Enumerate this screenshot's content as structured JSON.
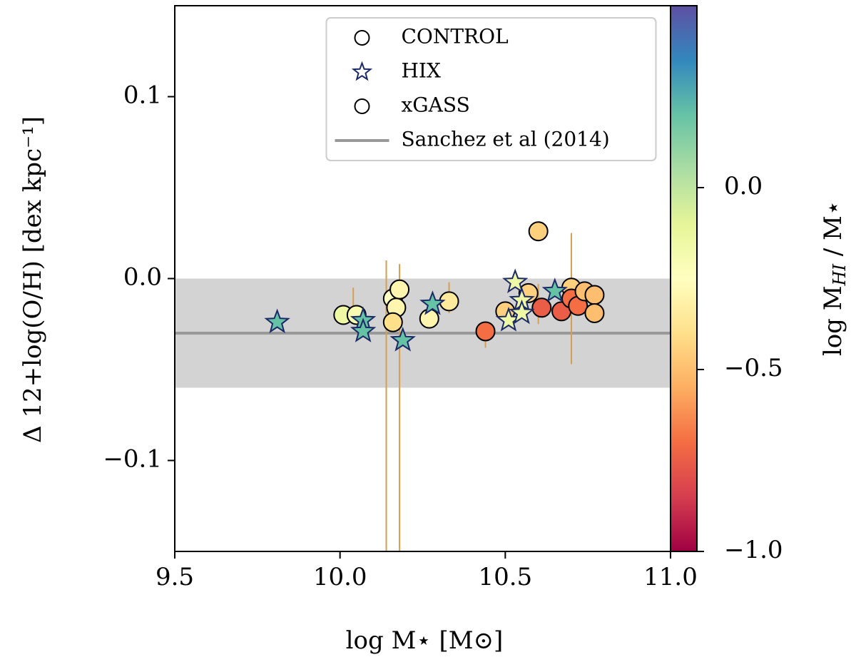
{
  "chart_data": {
    "type": "scatter",
    "xlabel": "log M⋆ [M⊙]",
    "ylabel": "Δ 12+log(O/H) [dex kpc⁻¹]",
    "xlim": [
      9.5,
      11.0
    ],
    "ylim": [
      -0.15,
      0.15
    ],
    "xticks": [
      9.5,
      {
        "value": 10,
        "label": "10.0"
      },
      10.5,
      {
        "value": 11,
        "label": "11.0"
      }
    ],
    "yticks": [
      {
        "value": -0.1,
        "label": "−0.1"
      },
      {
        "value": 0,
        "label": "0.0"
      },
      0.1
    ],
    "colormap": "Spectral",
    "clim": [
      -1.0,
      0.5
    ],
    "cticks": [
      {
        "value": -1,
        "label": "−1.0"
      },
      {
        "value": -0.5,
        "label": "−0.5"
      },
      {
        "value": 0,
        "label": "0.0"
      }
    ],
    "colorbar_label": [
      "log M",
      "HI",
      " / M⋆"
    ],
    "legend": "upper center",
    "series": [
      {
        "name": "CONTROL",
        "marker": "circle",
        "edgecolor": "#000000",
        "x": [],
        "y": [],
        "c": []
      },
      {
        "name": "HIX",
        "marker": "star",
        "edgecolor": "#1b2a66",
        "x": [
          9.81,
          10.07,
          10.07,
          10.19,
          10.28,
          10.51,
          10.53,
          10.55,
          10.55,
          10.65
        ],
        "y": [
          -0.024,
          -0.023,
          -0.029,
          -0.034,
          -0.014,
          -0.023,
          -0.002,
          -0.012,
          -0.019,
          -0.007
        ],
        "c": [
          0.2,
          0.2,
          0.2,
          0.2,
          0.2,
          -0.15,
          -0.15,
          -0.15,
          -0.15,
          0.2
        ]
      },
      {
        "name": "xGASS",
        "marker": "circle",
        "edgecolor": "#000000",
        "x": [
          10.01,
          10.05,
          10.16,
          10.18,
          10.17,
          10.16,
          10.27,
          10.33,
          10.44,
          10.5,
          10.57,
          10.6,
          10.61,
          10.67,
          10.7,
          10.7,
          10.72,
          10.74,
          10.77,
          10.77
        ],
        "y": [
          -0.02,
          -0.02,
          -0.011,
          -0.006,
          -0.016,
          -0.024,
          -0.022,
          -0.0125,
          -0.029,
          -0.018,
          -0.008,
          0.026,
          -0.016,
          -0.018,
          -0.005,
          -0.011,
          -0.015,
          -0.007,
          -0.009,
          -0.019
        ],
        "c": [
          -0.15,
          -0.2,
          -0.25,
          -0.3,
          -0.3,
          -0.4,
          -0.3,
          -0.35,
          -0.7,
          -0.45,
          -0.45,
          -0.45,
          -0.75,
          -0.75,
          -0.45,
          -0.7,
          -0.7,
          -0.5,
          -0.5,
          -0.5
        ]
      }
    ],
    "error_bars": {
      "color": "#d4a050",
      "x": [
        10.14,
        10.18,
        10.04,
        10.28,
        10.33,
        10.44,
        10.6,
        10.7
      ],
      "low": [
        -0.15,
        -0.15,
        -0.019,
        -0.019,
        -0.019,
        -0.038,
        -0.025,
        -0.047
      ],
      "high": [
        0.01,
        0.008,
        -0.005,
        -0.01,
        -0.002,
        -0.025,
        -0.003,
        0.025
      ]
    },
    "reference": {
      "name": "Sanchez et al (2014)",
      "value": -0.03,
      "band": [
        -0.06,
        0.0
      ],
      "color": "#999999",
      "band_color": "#d3d3d3"
    }
  }
}
